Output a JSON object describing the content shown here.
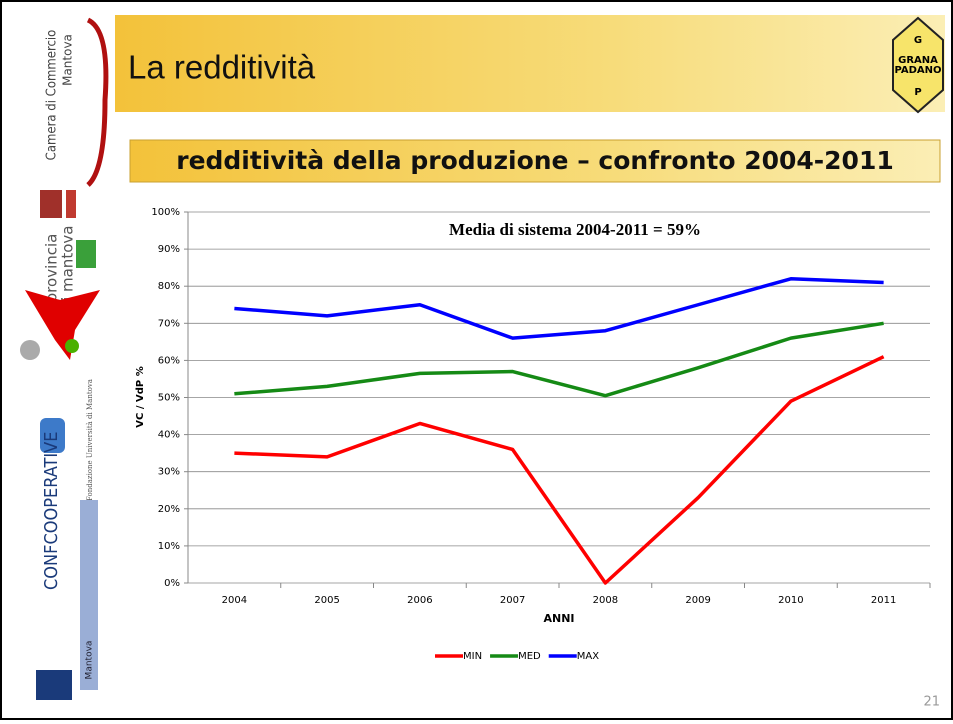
{
  "header": {
    "title": "La redditività",
    "subtitle": "redditività della produzione – confronto 2004-2011"
  },
  "sidebar": {
    "camera": "Camera di Commercio",
    "camera_city": "Mantova",
    "provincia": "provincia",
    "provincia_city": "di mantova",
    "fondazione": "Fondazione Università di Mantova",
    "confcoop": "CONFCOOPERATIVE",
    "confcoop_city": "Mantova"
  },
  "logo": {
    "top": "G",
    "name1": "GRANA",
    "name2": "PADANO",
    "bottom": "P"
  },
  "page_number": "21",
  "chart_data": {
    "type": "line",
    "annotation": "Media di sistema 2004-2011 = 59%",
    "y_label": "VC / VdP %",
    "x_label": "ANNI",
    "categories": [
      "2004",
      "2005",
      "2006",
      "2007",
      "2008",
      "2009",
      "2010",
      "2011"
    ],
    "series": [
      {
        "name": "MIN",
        "color": "#ff0000",
        "values": [
          35,
          34,
          43,
          36,
          0,
          23,
          49,
          61
        ]
      },
      {
        "name": "MED",
        "color": "#158a15",
        "values": [
          51,
          53,
          56.5,
          57,
          50.5,
          58,
          66,
          70
        ]
      },
      {
        "name": "MAX",
        "color": "#0000ff",
        "values": [
          74,
          72,
          75,
          66,
          68,
          75,
          82,
          81
        ]
      }
    ],
    "ylim": [
      0,
      100
    ],
    "yticks": [
      {
        "value": 0,
        "label": "0%"
      },
      {
        "value": 10,
        "label": "10%"
      },
      {
        "value": 20,
        "label": "20%"
      },
      {
        "value": 30,
        "label": "30%"
      },
      {
        "value": 40,
        "label": "40%"
      },
      {
        "value": 50,
        "label": "50%"
      },
      {
        "value": 60,
        "label": "60%"
      },
      {
        "value": 70,
        "label": "70%"
      },
      {
        "value": 80,
        "label": "80%"
      },
      {
        "value": 90,
        "label": "90%"
      },
      {
        "value": 100,
        "label": "100%"
      }
    ],
    "grid": true,
    "legend": "bottom"
  }
}
